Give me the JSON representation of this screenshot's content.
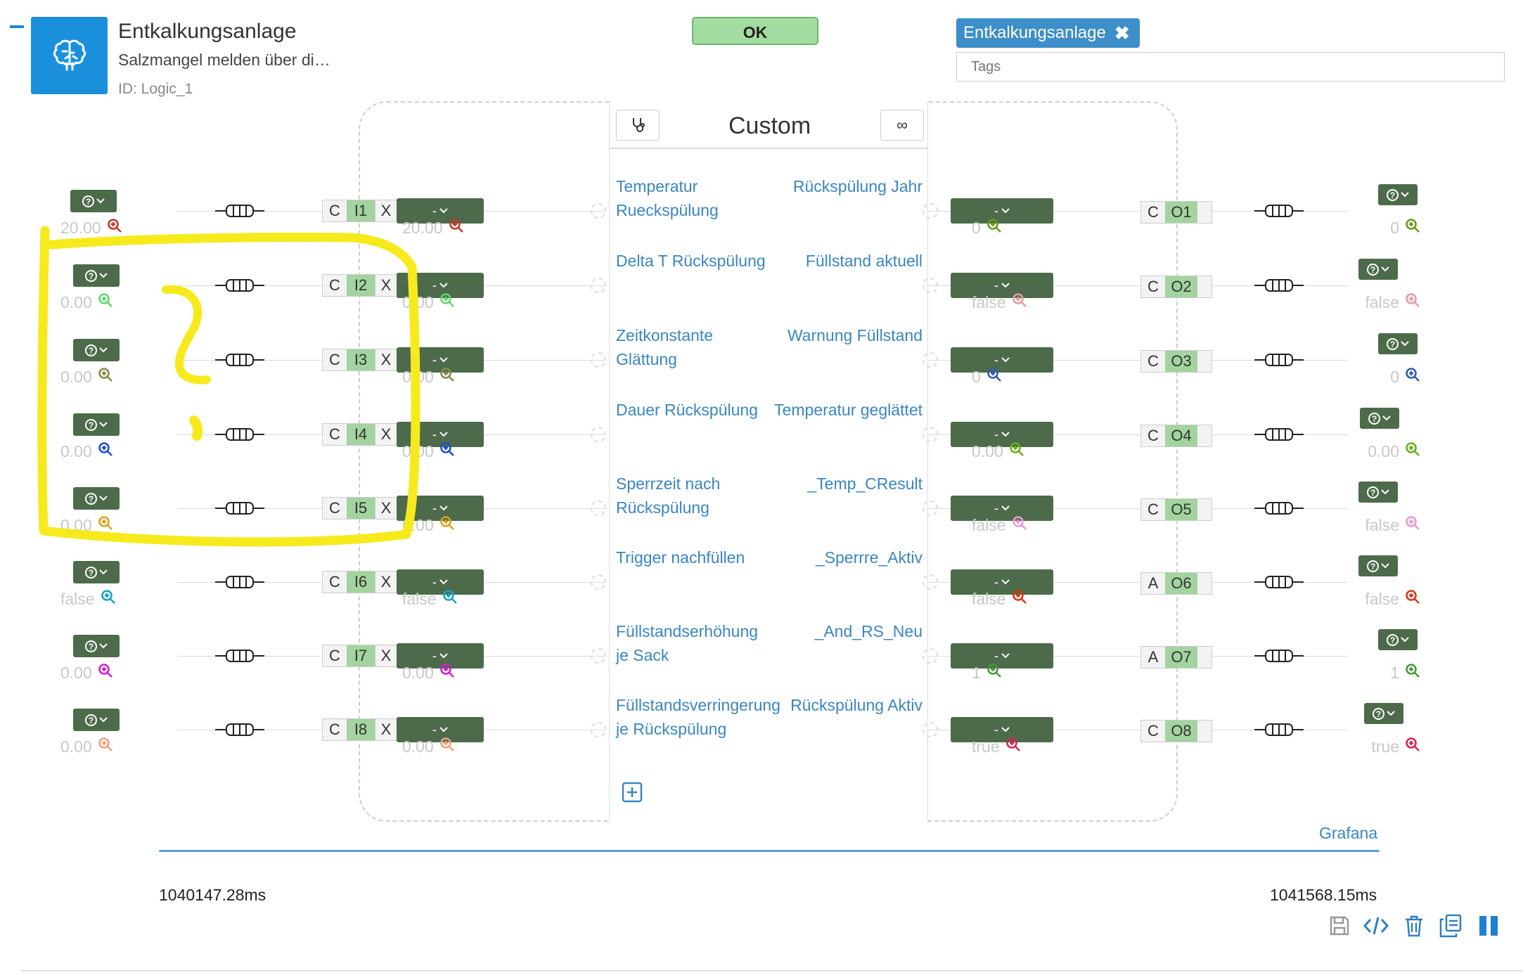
{
  "header": {
    "title": "Entkalkungsanlage",
    "subtitle": "Salzmangel melden über di…",
    "id_text": "ID: Logic_1",
    "status_label": "OK",
    "tag_chip": "Entkalkungsanlage",
    "tags_placeholder": "Tags",
    "logo_icon": "brain-icon",
    "status_color": "#a3dca0"
  },
  "block": {
    "title": "Custom",
    "left_button_icon": "stethoscope-icon",
    "right_button_icon": "infinity-icon",
    "add_icon": "plus-square-icon"
  },
  "inputs": [
    {
      "name": "I1",
      "conn": "C",
      "value": "20.00",
      "value2": "20.00",
      "label": "Temperatur Rueckspülung",
      "color": "#c0392b"
    },
    {
      "name": "I2",
      "conn": "C",
      "value": "0.00",
      "value2": "0.00",
      "label": "Delta T Rückspülung",
      "color": "#5fd86f"
    },
    {
      "name": "I3",
      "conn": "C",
      "value": "0.00",
      "value2": "0.00",
      "label": "Zeitkonstante Glättung",
      "color": "#8a8a4a"
    },
    {
      "name": "I4",
      "conn": "C",
      "value": "0.00",
      "value2": "0.00",
      "label": "Dauer Rückspülung",
      "color": "#1f4fcf"
    },
    {
      "name": "I5",
      "conn": "C",
      "value": "0.00",
      "value2": "0.00",
      "label": "Sperrzeit nach Rückspülung",
      "color": "#d9a41a"
    },
    {
      "name": "I6",
      "conn": "C",
      "value": "false",
      "value2": "false",
      "label": "Trigger nachfüllen",
      "color": "#1aa3c7"
    },
    {
      "name": "I7",
      "conn": "C",
      "value": "0.00",
      "value2": "0.00",
      "label": "Füllstandserhöhung je Sack",
      "color": "#d21fcf"
    },
    {
      "name": "I8",
      "conn": "C",
      "value": "0.00",
      "value2": "0.00",
      "label": "Füllstandsverringerung je Rückspülung",
      "color": "#f0a17c"
    }
  ],
  "outputs": [
    {
      "name": "O1",
      "conn": "C",
      "value": "0",
      "value2": "0",
      "label": "Rückspülung Jahr",
      "color": "#6a9a1a"
    },
    {
      "name": "O2",
      "conn": "C",
      "value": "false",
      "value2": "false",
      "label": "Füllstand aktuell",
      "color": "#e89aa0"
    },
    {
      "name": "O3",
      "conn": "C",
      "value": "0",
      "value2": "0",
      "label": "Warnung Füllstand",
      "color": "#2f5fb0"
    },
    {
      "name": "O4",
      "conn": "C",
      "value": "0.00",
      "value2": "0.00",
      "label": "Temperatur geglättet",
      "color": "#6ab01a"
    },
    {
      "name": "O5",
      "conn": "C",
      "value": "false",
      "value2": "false",
      "label": "_Temp_CResult",
      "color": "#e79ad6"
    },
    {
      "name": "O6",
      "conn": "A",
      "value": "false",
      "value2": "false",
      "label": "_Sperrre_Aktiv",
      "color": "#d43a1a"
    },
    {
      "name": "O7",
      "conn": "A",
      "value": "1",
      "value2": "1",
      "label": "_And_RS_Neu",
      "color": "#4a9a3a"
    },
    {
      "name": "O8",
      "conn": "C",
      "value": "true",
      "value2": "true",
      "label": "Rückspülung Aktiv",
      "color": "#d8265a"
    }
  ],
  "dropdown_label": "-",
  "footer": {
    "grafana_link": "Grafana",
    "time_start": "1040147.28ms",
    "time_end": "1041568.15ms",
    "toolbar_icons": [
      "save-icon",
      "code-icon",
      "trash-icon",
      "copy-icon",
      "pause-icon"
    ]
  }
}
